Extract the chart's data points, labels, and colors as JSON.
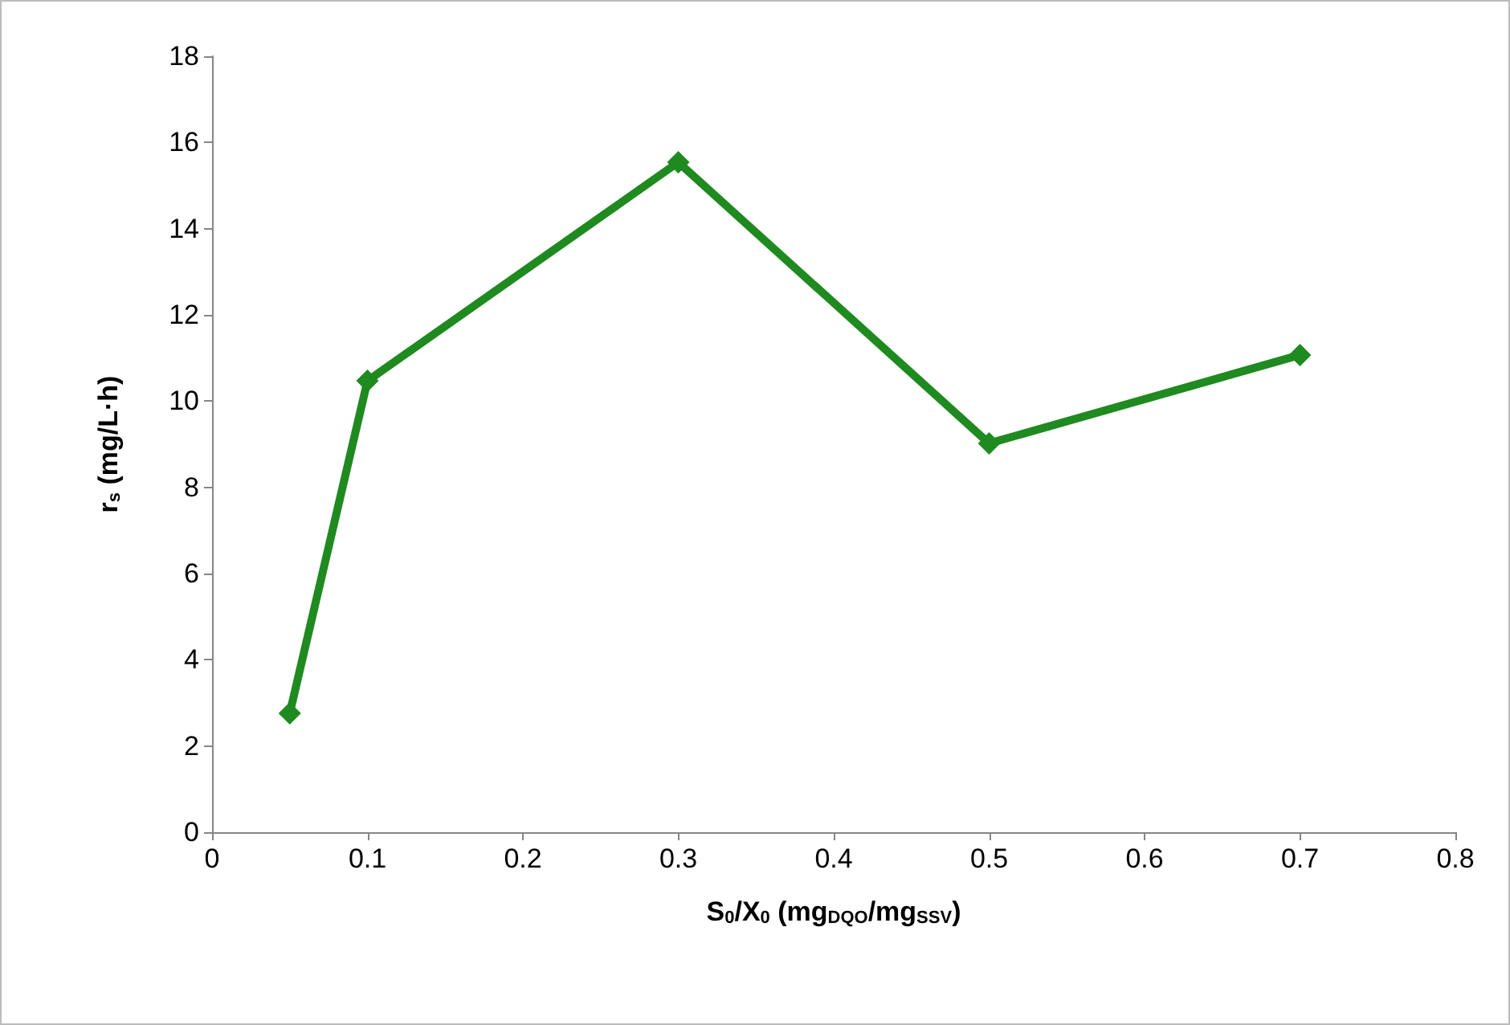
{
  "chart_data": {
    "type": "line",
    "xlabel": "S$_{0}$/X$_{0}$ (mg$_{DQO}$/mg$_{SSV}$)",
    "ylabel": "r$_{s}$ (mg/L·h)",
    "x": [
      0.05,
      0.1,
      0.3,
      0.5,
      0.7
    ],
    "series": [
      {
        "color": "#1f8a1f",
        "values": [
          2.76,
          10.47,
          15.54,
          9.02,
          11.07
        ]
      }
    ],
    "xlim": [
      0,
      0.8
    ],
    "xticks": [
      0,
      0.1,
      0.2,
      0.3,
      0.4,
      0.5,
      0.6,
      0.7,
      0.8
    ],
    "ylim": [
      0,
      18
    ],
    "yticks": [
      0,
      2,
      4,
      6,
      8,
      10,
      12,
      14,
      16,
      18
    ],
    "grid": false,
    "marker": "diamond",
    "line_style": "solid"
  }
}
